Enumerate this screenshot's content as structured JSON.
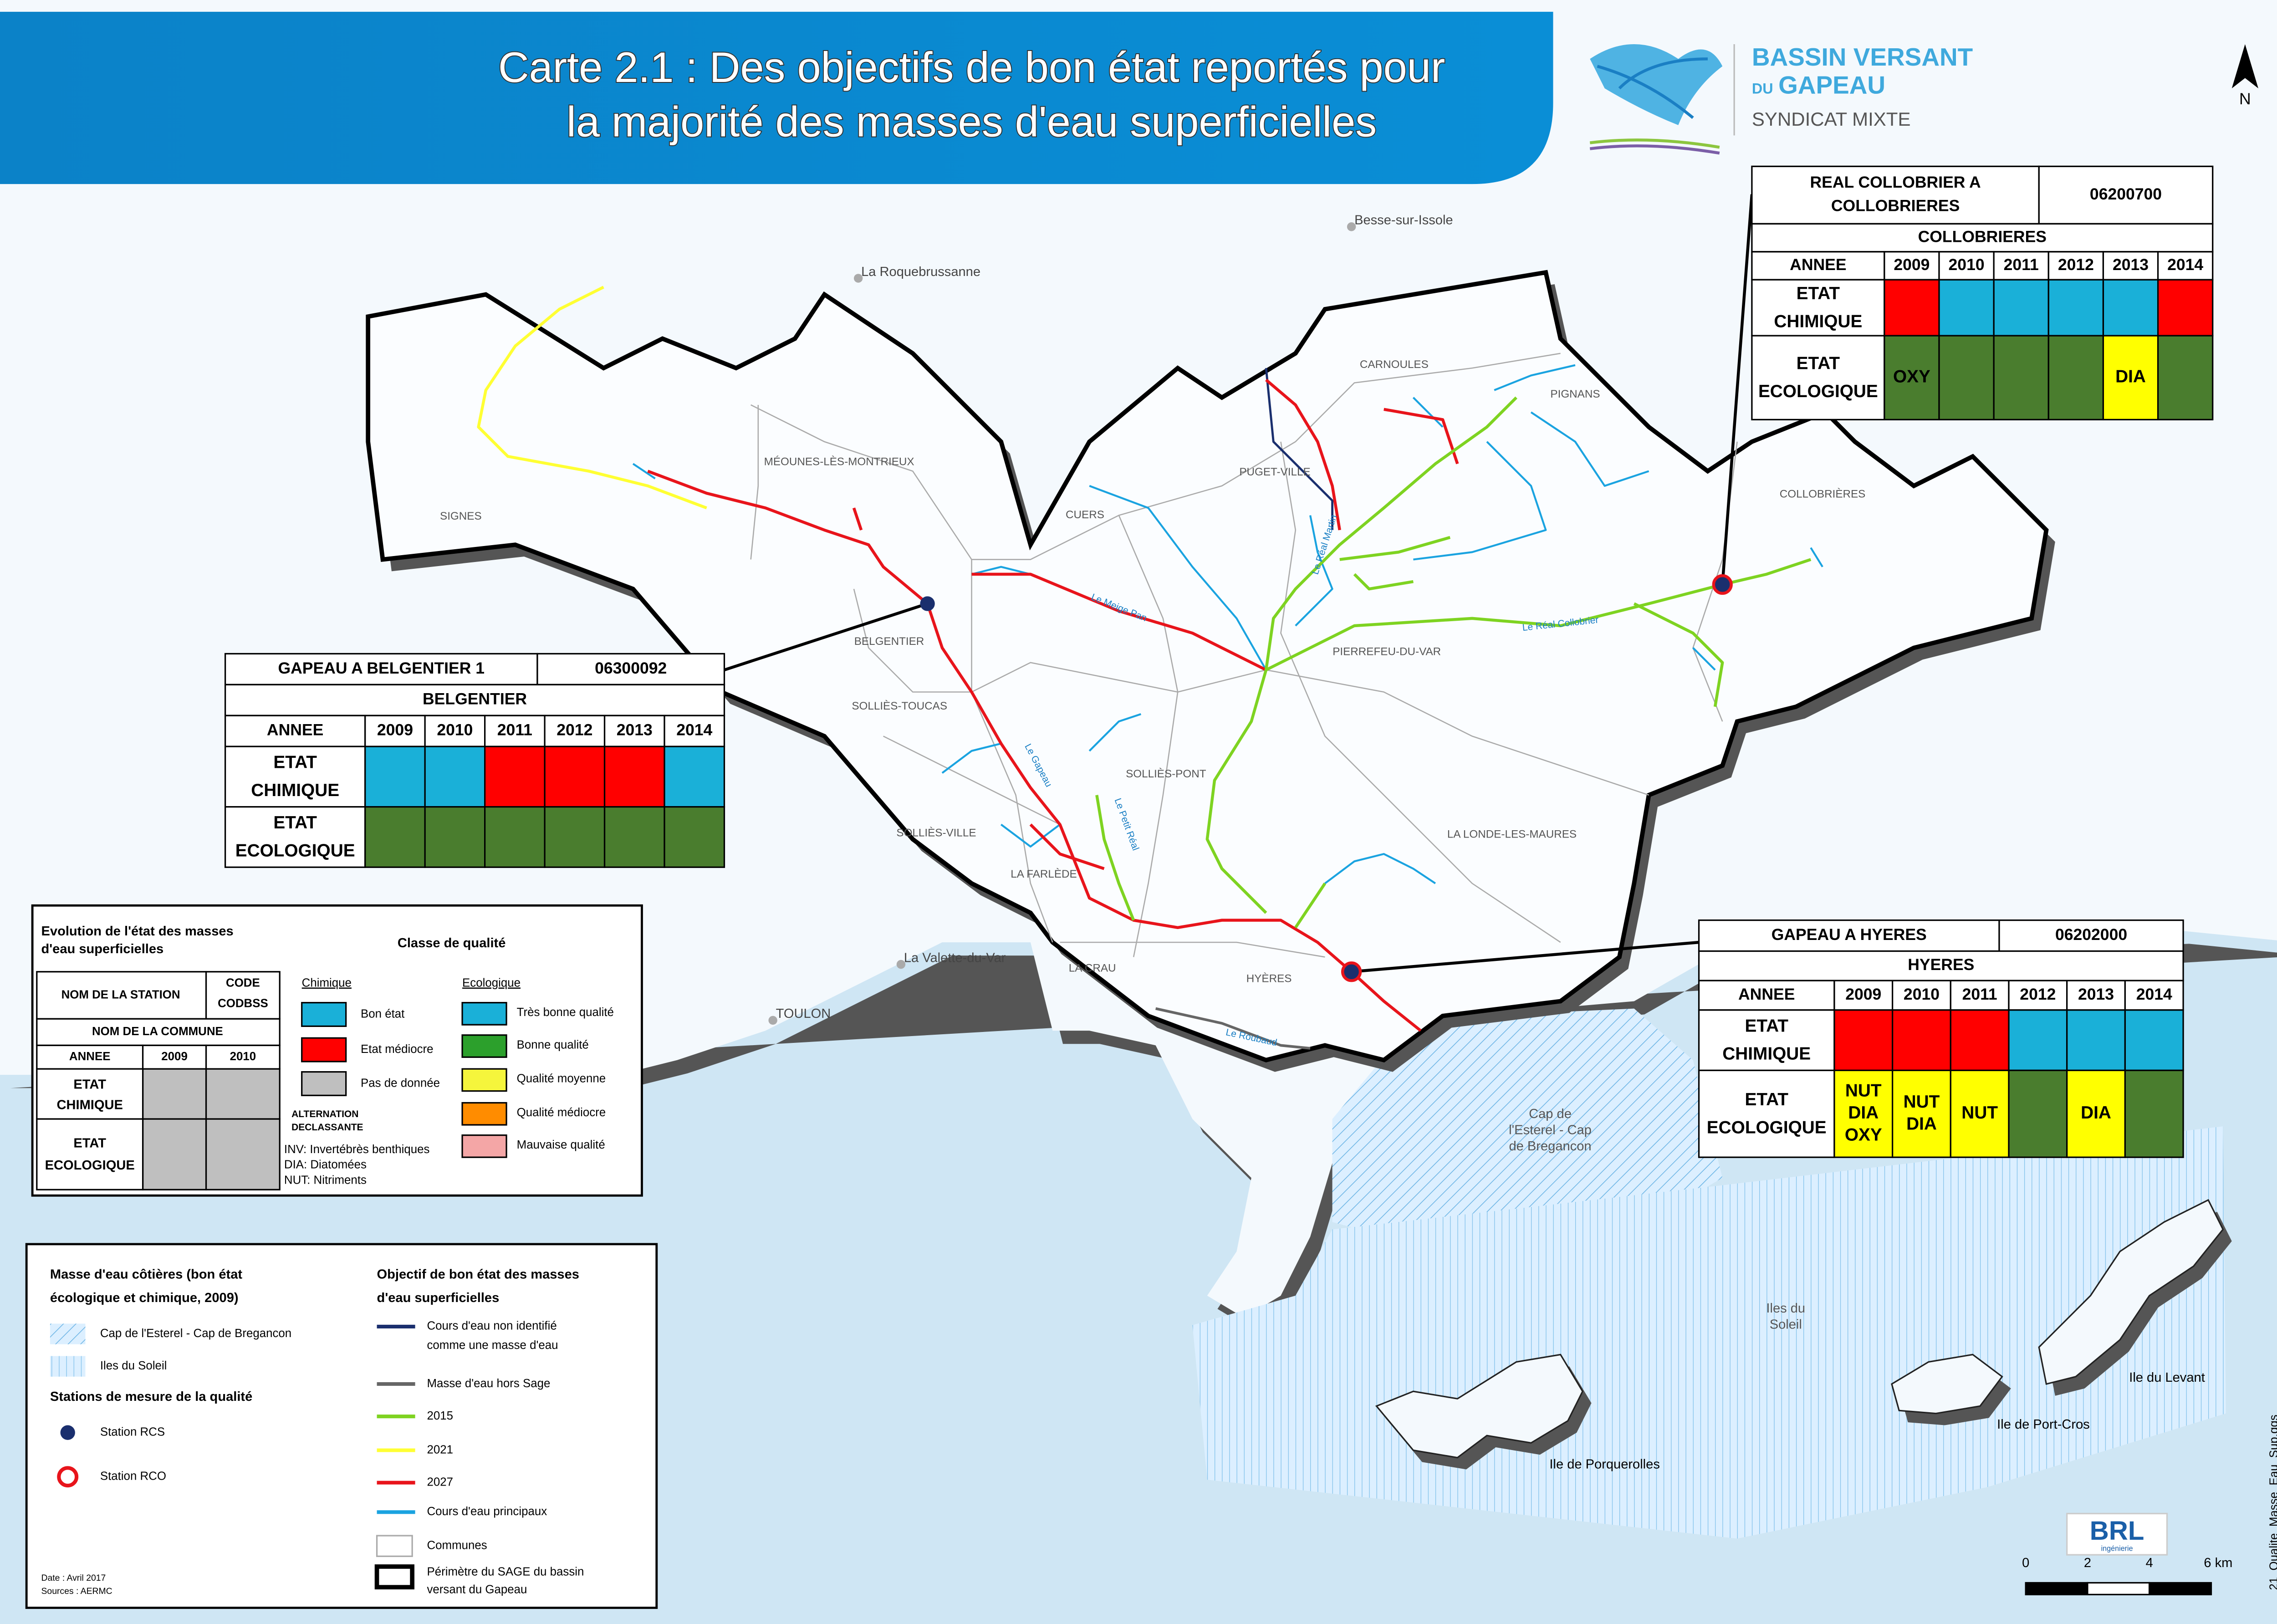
{
  "header": {
    "title_lines": [
      "Carte 2.1 : Des objectifs de bon état reportés pour",
      "la majorité des masses d'eau superficielles"
    ]
  },
  "logo": {
    "lines": [
      "BASSIN VERSANT",
      "DU",
      "GAPEAU",
      "SYNDICAT MIXTE"
    ]
  },
  "north": "N",
  "towns": [
    "Besse-sur-Issole",
    "La Roquebrussanne",
    "La Valette-du-Var",
    "TOULON"
  ],
  "communes": [
    "CARNOULES",
    "PIGNANS",
    "SIGNES",
    "MÉOUNES-LÈS-MONTRIEUX",
    "PUGET-VILLE",
    "CUERS",
    "COLLOBRIÈRES",
    "BELGENTIER",
    "PIERREFEU-DU-VAR",
    "SOLLIÈS-TOUCAS",
    "SOLLIÈS-PONT",
    "SOLLIÈS-VILLE",
    "LA LONDE-LES-MAURES",
    "LA FARLÈDE",
    "LA CRAU",
    "HYÈRES"
  ],
  "rivers": [
    "Le Gapeau",
    "Le Réal Martin",
    "Le Petit Réal",
    "Le Roubaud",
    "Le Réal Collobrier",
    "Le Meige Pan"
  ],
  "sea_labels": {
    "cap": [
      "Cap de",
      "l'Esterel - Cap",
      "de Bregancon"
    ],
    "soleil": [
      "Iles du",
      "Soleil"
    ]
  },
  "islands": [
    "Ile de Porquerolles",
    "Ile de Port-Cros",
    "Ile du Levant"
  ],
  "stations": [
    {
      "name_lines": [
        "GAPEAU A BELGENTIER 1"
      ],
      "code": "06300092",
      "commune": "BELGENTIER",
      "year_header": "ANNEE",
      "years": [
        "2009",
        "2010",
        "2011",
        "2012",
        "2013",
        "2014"
      ],
      "chem_label": [
        "ETAT",
        "CHIMIQUE"
      ],
      "eco_label": [
        "ETAT",
        "ECOLOGIQUE"
      ],
      "chem": [
        "#1ab0d8",
        "#1ab0d8",
        "#ff0000",
        "#ff0000",
        "#ff0000",
        "#1ab0d8"
      ],
      "eco": [
        {
          "color": "#4a7d2e"
        },
        {
          "color": "#4a7d2e"
        },
        {
          "color": "#4a7d2e"
        },
        {
          "color": "#4a7d2e"
        },
        {
          "color": "#4a7d2e"
        },
        {
          "color": "#4a7d2e"
        }
      ]
    },
    {
      "name_lines": [
        "REAL COLLOBRIER A",
        "COLLOBRIERES"
      ],
      "code": "06200700",
      "commune": "COLLOBRIERES",
      "year_header": "ANNEE",
      "years": [
        "2009",
        "2010",
        "2011",
        "2012",
        "2013",
        "2014"
      ],
      "chem_label": [
        "ETAT",
        "CHIMIQUE"
      ],
      "eco_label": [
        "ETAT",
        "ECOLOGIQUE"
      ],
      "chem": [
        "#ff0000",
        "#1ab0d8",
        "#1ab0d8",
        "#1ab0d8",
        "#1ab0d8",
        "#ff0000"
      ],
      "eco": [
        {
          "color": "#4a7d2e",
          "labels": [
            "OXY"
          ]
        },
        {
          "color": "#4a7d2e"
        },
        {
          "color": "#4a7d2e"
        },
        {
          "color": "#4a7d2e"
        },
        {
          "color": "#ffff00",
          "labels": [
            "DIA"
          ]
        },
        {
          "color": "#4a7d2e"
        }
      ]
    },
    {
      "name_lines": [
        "GAPEAU A HYERES"
      ],
      "code": "06202000",
      "commune": "HYERES",
      "year_header": "ANNEE",
      "years": [
        "2009",
        "2010",
        "2011",
        "2012",
        "2013",
        "2014"
      ],
      "chem_label": [
        "ETAT",
        "CHIMIQUE"
      ],
      "eco_label": [
        "ETAT",
        "ECOLOGIQUE"
      ],
      "chem": [
        "#ff0000",
        "#ff0000",
        "#ff0000",
        "#1ab0d8",
        "#1ab0d8",
        "#1ab0d8"
      ],
      "eco": [
        {
          "color": "#ffff00",
          "labels": [
            "NUT",
            "DIA",
            "OXY"
          ]
        },
        {
          "color": "#ffff00",
          "labels": [
            "NUT",
            "DIA"
          ]
        },
        {
          "color": "#ffff00",
          "labels": [
            "NUT"
          ]
        },
        {
          "color": "#4a7d2e"
        },
        {
          "color": "#ffff00",
          "labels": [
            "DIA"
          ]
        },
        {
          "color": "#4a7d2e"
        }
      ]
    }
  ],
  "quality_legend": {
    "title_lines": [
      "Evolution de l'état des masses",
      "d'eau superficielles"
    ],
    "class_title": "Classe de qualité",
    "chem_title": "Chimique",
    "chem_items": [
      {
        "label": "Bon état",
        "color": "#1ab0d8"
      },
      {
        "label": "Etat médiocre",
        "color": "#ff0000"
      },
      {
        "label": "Pas de donnée",
        "color": "#bfbfbf"
      }
    ],
    "eco_title": "Ecologique",
    "eco_items": [
      {
        "label": "Très bonne qualité",
        "color": "#1ab0d8"
      },
      {
        "label": "Bonne qualité",
        "color": "#2ca02c"
      },
      {
        "label": "Qualité moyenne",
        "color": "#f5f53c"
      },
      {
        "label": "Qualité médiocre",
        "color": "#ff8c00"
      },
      {
        "label": "Mauvaise qualité",
        "color": "#f4a6a6"
      }
    ],
    "alt_title": [
      "ALTERNATION",
      "DECLASSANTE"
    ],
    "alt_items": [
      "INV: Invertébrès benthiques",
      "DIA: Diatomées",
      "NUT: Nitriments"
    ],
    "sample": {
      "station": "NOM DE LA STATION",
      "code": [
        "CODE",
        "CODBSS"
      ],
      "commune": "NOM DE LA COMMUNE",
      "year_header": "ANNEE",
      "years": [
        "2009",
        "2010"
      ],
      "chem_label": [
        "ETAT",
        "CHIMIQUE"
      ],
      "eco_label": [
        "ETAT",
        "ECOLOGIQUE"
      ]
    }
  },
  "map_legend": {
    "coastal_title": [
      "Masse d'eau côtières (bon état",
      "écologique et chimique, 2009)"
    ],
    "coastal_items": [
      "Cap de l'Esterel - Cap de Bregancon",
      "Iles du Soleil"
    ],
    "stations_title": "Stations de mesure de la qualité",
    "station_items": [
      "Station RCS",
      "Station RCO"
    ],
    "objective_title": [
      "Objectif de bon état des masses",
      "d'eau superficielles"
    ],
    "line_items": [
      {
        "label_lines": [
          "Cours d'eau non identifié",
          "comme une masse d'eau"
        ],
        "color": "#1a2f6e"
      },
      {
        "label_lines": [
          "Masse d'eau hors Sage"
        ],
        "color": "#666666"
      },
      {
        "label_lines": [
          "2015"
        ],
        "color": "#7ed321"
      },
      {
        "label_lines": [
          "2021"
        ],
        "color": "#ffff33"
      },
      {
        "label_lines": [
          "2027"
        ],
        "color": "#e8141b"
      },
      {
        "label_lines": [
          "Cours d'eau principaux"
        ],
        "color": "#1aa3e0"
      }
    ],
    "communes": "Communes",
    "perimeter": [
      "Périmètre du SAGE du bassin",
      "versant du Gapeau"
    ]
  },
  "footer": {
    "date": "Date : Avril 2017",
    "sources": "Sources : AERMC",
    "file": "21_Qualite_Masse_Eau_Sup.qgs"
  },
  "scale": {
    "labels": [
      "0",
      "2",
      "4",
      "6 km"
    ]
  },
  "brl": {
    "name": "BRL",
    "sub": "ingénierie"
  }
}
